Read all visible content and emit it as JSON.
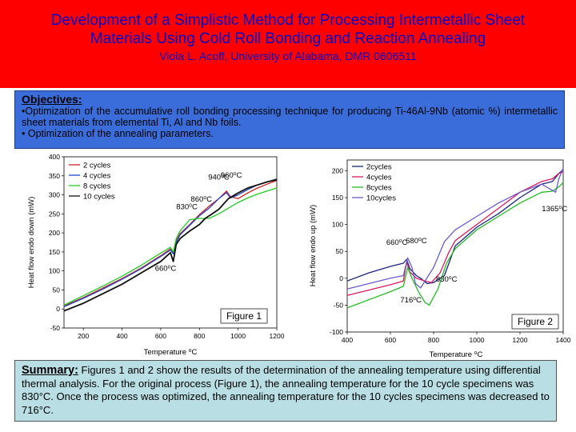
{
  "header": {
    "title_line1": "Development of a Simplistic Method for Processing Intermetallic Sheet",
    "title_line2": "Materials Using Cold Roll Bonding and Reaction Annealing",
    "authors": "Viola L. Acoff, University of Alabama, DMR 0606511",
    "bg_color": "#ff0000",
    "text_color": "#0000cc"
  },
  "objectives": {
    "heading": "Objectives:",
    "items": [
      "•Optimization of the accumulative roll bonding processing technique for producing Ti-46Al-9Nb (atomic %) intermetallic sheet materials from elemental Ti, Al and Nb foils.",
      "• Optimization of the annealing parameters."
    ]
  },
  "summary": {
    "heading": "Summary:",
    "text": " Figures 1 and  2 show the results of the determination of the annealing temperature using differential thermal analysis.  For the original process (Figure 1), the annealing temperature for the 10 cycle specimens was 830°C. Once the process was optimized, the annealing temperature for the 10 cycles specimens was decreased to 716°C."
  },
  "chart_data": [
    {
      "type": "line",
      "figure_label": "Figure 1",
      "xlabel": "Temperature ⁰C",
      "ylabel": "Heat flow endo down (mW)",
      "xlim": [
        100,
        1200
      ],
      "ylim": [
        -50,
        400
      ],
      "xticks": [
        200,
        400,
        600,
        800,
        1000,
        1200
      ],
      "yticks": [
        -50,
        0,
        50,
        100,
        150,
        200,
        250,
        300,
        350,
        400
      ],
      "legend": "top-left",
      "series": [
        {
          "name": "2 cycles",
          "color": "#cc2222",
          "x": [
            100,
            200,
            300,
            400,
            500,
            600,
            650,
            665,
            680,
            700,
            750,
            800,
            850,
            900,
            940,
            960,
            1000,
            1050,
            1100,
            1150,
            1200
          ],
          "y": [
            8,
            30,
            55,
            80,
            108,
            140,
            158,
            148,
            180,
            198,
            222,
            248,
            270,
            290,
            310,
            295,
            290,
            305,
            318,
            328,
            338
          ]
        },
        {
          "name": "4 cycles",
          "color": "#2244cc",
          "x": [
            100,
            200,
            300,
            400,
            500,
            600,
            650,
            665,
            680,
            700,
            750,
            800,
            850,
            900,
            940,
            960,
            1000,
            1050,
            1100,
            1150,
            1200
          ],
          "y": [
            6,
            28,
            52,
            78,
            106,
            138,
            155,
            145,
            175,
            195,
            220,
            245,
            265,
            290,
            306,
            292,
            300,
            314,
            326,
            334,
            342
          ]
        },
        {
          "name": "8 cycles",
          "color": "#22cc22",
          "x": [
            100,
            200,
            300,
            400,
            500,
            600,
            650,
            665,
            680,
            700,
            750,
            800,
            850,
            900,
            950,
            1000,
            1050,
            1100,
            1150,
            1200
          ],
          "y": [
            10,
            35,
            60,
            86,
            115,
            147,
            162,
            150,
            185,
            205,
            235,
            238,
            238,
            250,
            265,
            280,
            292,
            302,
            310,
            318
          ]
        },
        {
          "name": "10 cycles",
          "color": "#111111",
          "x": [
            100,
            200,
            300,
            400,
            500,
            600,
            650,
            665,
            680,
            700,
            750,
            800,
            830,
            860,
            900,
            950,
            1000,
            1050,
            1100,
            1150,
            1200
          ],
          "y": [
            -5,
            15,
            40,
            65,
            95,
            125,
            148,
            125,
            170,
            185,
            205,
            222,
            238,
            248,
            262,
            290,
            305,
            318,
            326,
            334,
            340
          ]
        }
      ],
      "annotations": [
        {
          "text": "940⁰C",
          "x": 900,
          "y": 340
        },
        {
          "text": "960⁰C",
          "x": 965,
          "y": 345
        },
        {
          "text": "860⁰C",
          "x": 810,
          "y": 282
        },
        {
          "text": "830⁰C",
          "x": 735,
          "y": 262
        },
        {
          "text": "660⁰C",
          "x": 625,
          "y": 100
        }
      ]
    },
    {
      "type": "line",
      "figure_label": "Figure 2",
      "xlabel": "Temperature ⁰C",
      "ylabel": "Heat flow endo up (mW)",
      "xlim": [
        400,
        1400
      ],
      "ylim": [
        -100,
        220
      ],
      "xticks": [
        400,
        600,
        800,
        1000,
        1200,
        1400
      ],
      "yticks": [
        -100,
        -50,
        0,
        50,
        100,
        150,
        200
      ],
      "legend": "top-left",
      "series": [
        {
          "name": "2cycles",
          "color": "#1a237e",
          "x": [
            400,
            500,
            600,
            660,
            675,
            690,
            720,
            740,
            770,
            800,
            850,
            900,
            1000,
            1100,
            1200,
            1300,
            1350,
            1380,
            1400
          ],
          "y": [
            -5,
            10,
            22,
            28,
            35,
            18,
            5,
            0,
            -10,
            -8,
            5,
            60,
            95,
            120,
            150,
            175,
            180,
            195,
            202
          ]
        },
        {
          "name": "4cycles",
          "color": "#d81b60",
          "x": [
            400,
            500,
            600,
            660,
            675,
            690,
            720,
            760,
            790,
            830,
            870,
            900,
            1000,
            1100,
            1200,
            1300,
            1350,
            1380,
            1400
          ],
          "y": [
            -32,
            -22,
            -12,
            -5,
            30,
            12,
            0,
            -5,
            -8,
            10,
            48,
            70,
            100,
            130,
            160,
            180,
            185,
            195,
            198
          ]
        },
        {
          "name": "8cycles",
          "color": "#22bb22",
          "x": [
            400,
            500,
            600,
            660,
            680,
            700,
            730,
            760,
            780,
            820,
            860,
            900,
            1000,
            1100,
            1200,
            1300,
            1350,
            1380,
            1400
          ],
          "y": [
            -55,
            -40,
            -25,
            -15,
            20,
            0,
            -25,
            -45,
            -50,
            -20,
            28,
            55,
            90,
            115,
            140,
            160,
            162,
            170,
            178
          ]
        },
        {
          "name": "10cycles",
          "color": "#6a5acd",
          "x": [
            400,
            500,
            600,
            660,
            680,
            700,
            716,
            740,
            800,
            850,
            900,
            1000,
            1100,
            1200,
            1300,
            1365,
            1380,
            1400
          ],
          "y": [
            -20,
            -10,
            0,
            5,
            38,
            20,
            -10,
            -18,
            20,
            68,
            90,
            115,
            140,
            160,
            175,
            160,
            185,
            205
          ]
        }
      ],
      "annotations": [
        {
          "text": "1365⁰C",
          "x": 1360,
          "y": 125
        },
        {
          "text": "660⁰C",
          "x": 630,
          "y": 62
        },
        {
          "text": "680⁰C",
          "x": 720,
          "y": 65
        },
        {
          "text": "830⁰C",
          "x": 860,
          "y": -6
        },
        {
          "text": "716⁰C",
          "x": 695,
          "y": -45
        }
      ]
    }
  ]
}
